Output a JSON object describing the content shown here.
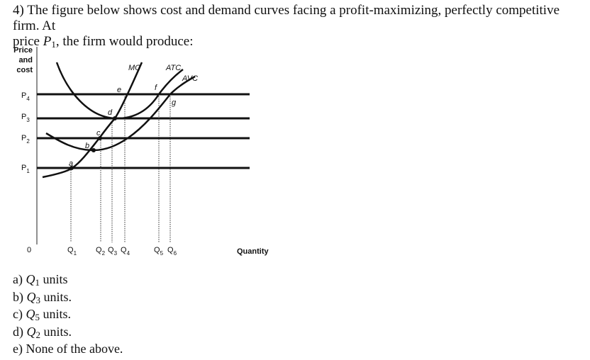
{
  "question": {
    "line1": "4) The figure below shows cost and demand curves facing a profit-maximizing, perfectly competitive firm. At",
    "line2_start": "price",
    "var": "P",
    "sub": "1",
    "line2_end": ", the firm would produce:"
  },
  "figure": {
    "y_axis_title": [
      "Price",
      "and",
      "cost"
    ],
    "price_labels": [
      {
        "base": "P",
        "sub": "4"
      },
      {
        "base": "P",
        "sub": "3"
      },
      {
        "base": "P",
        "sub": "2"
      },
      {
        "base": "P",
        "sub": "1"
      }
    ],
    "origin": "0",
    "quantity_labels": [
      {
        "base": "Q",
        "sub": "1"
      },
      {
        "base": "Q",
        "sub": "2"
      },
      {
        "base": "Q",
        "sub": "3"
      },
      {
        "base": "Q",
        "sub": "4"
      },
      {
        "base": "Q",
        "sub": "5"
      },
      {
        "base": "Q",
        "sub": "6"
      }
    ],
    "x_axis_title": "Quantity",
    "curve_labels": [
      "MC",
      "ATC",
      "AVC"
    ],
    "point_labels": [
      "a",
      "b",
      "c",
      "d",
      "e",
      "f",
      "g"
    ]
  },
  "options": [
    {
      "label": "a)",
      "var": "Q",
      "sub": "1",
      "text": "units"
    },
    {
      "label": "b)",
      "var": "Q",
      "sub": "3",
      "text": "units."
    },
    {
      "label": "c)",
      "var": "Q",
      "sub": "5",
      "text": "units."
    },
    {
      "label": "d)",
      "var": "Q",
      "sub": "2",
      "text": "units."
    },
    {
      "label": "e)",
      "text": "None of the above."
    }
  ]
}
